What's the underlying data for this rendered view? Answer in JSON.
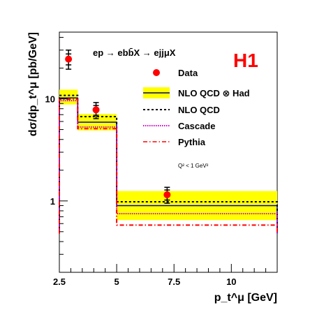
{
  "chart_data": {
    "type": "step",
    "experiment_label": "H1",
    "process_label": "ep → ebb̄X → ejjμX",
    "cut_label": "Q² < 1 GeV²",
    "xlabel": "p_t^μ [GeV]",
    "ylabel": "dσ/dp_t^μ [pb/GeV]",
    "x_scale": "linear",
    "y_scale": "log",
    "xlim": [
      2.5,
      12
    ],
    "ylim": [
      0.2,
      45
    ],
    "x_ticks": [
      {
        "value": 2.5,
        "label": "2.5"
      },
      {
        "value": 5,
        "label": "5"
      },
      {
        "value": 7.5,
        "label": "7.5"
      },
      {
        "value": 10,
        "label": "10"
      }
    ],
    "y_ticks": [
      {
        "value": 1,
        "label": "1"
      },
      {
        "value": 10,
        "label": "10"
      }
    ],
    "bin_edges": [
      2.5,
      3.3,
      5,
      12
    ],
    "legend_position": "top-right",
    "data": {
      "name": "Data",
      "x": [
        2.9,
        4.1,
        7.2
      ],
      "y": [
        24.5,
        7.8,
        1.15
      ],
      "stat_err_low": [
        21.5,
        6.9,
        1.02
      ],
      "stat_err_high": [
        27.5,
        8.6,
        1.28
      ],
      "tot_err_low": [
        19.5,
        6.4,
        0.95
      ],
      "tot_err_high": [
        30,
        9.2,
        1.36
      ]
    },
    "series": [
      {
        "name": "NLO QCD ⊗ Had",
        "values": [
          10.2,
          5.9,
          0.9
        ],
        "band_low": [
          8.8,
          4.9,
          0.65
        ],
        "band_high": [
          12.3,
          7.1,
          1.25
        ],
        "color": "#0000cc",
        "band_color": "#ffff00",
        "style": "solid"
      },
      {
        "name": "NLO QCD",
        "values": [
          10.8,
          6.7,
          0.98
        ],
        "color": "#000000",
        "style": "dashed"
      },
      {
        "name": "Cascade",
        "values": [
          9.6,
          5.3,
          0.75
        ],
        "color": "#cc00cc",
        "style": "dotted"
      },
      {
        "name": "Pythia",
        "values": [
          9.9,
          5.1,
          0.58
        ],
        "color": "#ff0000",
        "style": "dashdot"
      }
    ],
    "data_marker_color": "#ff0000",
    "h1_color": "#ff0000"
  }
}
